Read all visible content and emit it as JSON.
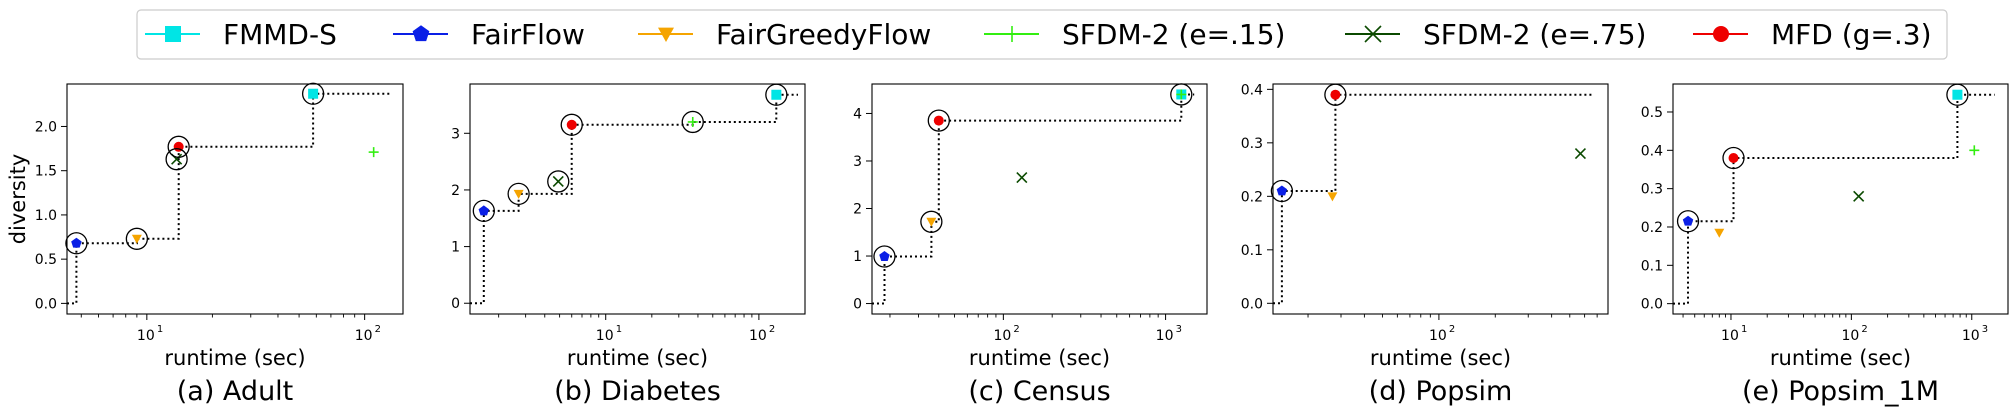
{
  "legend": {
    "entries": [
      {
        "label": "FMMD-S",
        "color": "#00e5e5",
        "marker": "square"
      },
      {
        "label": "FairFlow",
        "color": "#0a1fe6",
        "marker": "pentagon"
      },
      {
        "label": "FairGreedyFlow",
        "color": "#f5a400",
        "marker": "triangle-down"
      },
      {
        "label": "SFDM-2 (e=.15)",
        "color": "#33ee11",
        "marker": "plus"
      },
      {
        "label": "SFDM-2 (e=.75)",
        "color": "#0b4a00",
        "marker": "x"
      },
      {
        "label": "MFD (g=.3)",
        "color": "#ee0000",
        "marker": "circle"
      }
    ]
  },
  "chart_data": [
    {
      "type": "scatter",
      "caption": "(a) Adult",
      "xlabel": "runtime (sec)",
      "ylabel": "diversity",
      "xscale": "log",
      "xlim": [
        4.3,
        150
      ],
      "ylim": [
        -0.12,
        2.48
      ],
      "xticks": [
        {
          "v": 10,
          "base": "10",
          "exp": "1"
        },
        {
          "v": 100,
          "base": "10",
          "exp": "2"
        }
      ],
      "yticks": [
        {
          "v": 0,
          "label": "0.0"
        },
        {
          "v": 0.5,
          "label": "0.5"
        },
        {
          "v": 1.0,
          "label": "1.0"
        },
        {
          "v": 1.5,
          "label": "1.5"
        },
        {
          "v": 2.0,
          "label": "2.0"
        }
      ],
      "frontier": [
        [
          4.3,
          0
        ],
        [
          4.75,
          0
        ],
        [
          4.75,
          0.68
        ],
        [
          9,
          0.68
        ],
        [
          9,
          0.73
        ],
        [
          14,
          0.73
        ],
        [
          14,
          1.77
        ],
        [
          58,
          1.77
        ],
        [
          58,
          2.37
        ],
        [
          130,
          2.37
        ]
      ],
      "circled": [
        [
          4.75,
          0.68
        ],
        [
          9,
          0.73
        ],
        [
          13.7,
          1.63
        ],
        [
          14,
          1.77
        ],
        [
          58,
          2.37
        ]
      ],
      "points": [
        {
          "series": "FMMD-S",
          "x": 58,
          "y": 2.37
        },
        {
          "series": "FairFlow",
          "x": 4.75,
          "y": 0.68
        },
        {
          "series": "FairGreedyFlow",
          "x": 9,
          "y": 0.73
        },
        {
          "series": "SFDM-2 (e=.15)",
          "x": 110,
          "y": 1.71
        },
        {
          "series": "SFDM-2 (e=.75)",
          "x": 13.7,
          "y": 1.63
        },
        {
          "series": "MFD (g=.3)",
          "x": 14,
          "y": 1.77
        }
      ]
    },
    {
      "type": "scatter",
      "caption": "(b) Diabetes",
      "xlabel": "runtime (sec)",
      "ylabel": "",
      "xscale": "log",
      "xlim": [
        1.3,
        200
      ],
      "ylim": [
        -0.19,
        3.87
      ],
      "xticks": [
        {
          "v": 10,
          "base": "10",
          "exp": "1"
        },
        {
          "v": 100,
          "base": "10",
          "exp": "2"
        }
      ],
      "yticks": [
        {
          "v": 0,
          "label": "0"
        },
        {
          "v": 1,
          "label": "1"
        },
        {
          "v": 2,
          "label": "2"
        },
        {
          "v": 3,
          "label": "3"
        }
      ],
      "frontier": [
        [
          1.3,
          0
        ],
        [
          1.6,
          0
        ],
        [
          1.6,
          1.63
        ],
        [
          2.7,
          1.63
        ],
        [
          2.7,
          1.93
        ],
        [
          6,
          1.93
        ],
        [
          6,
          3.15
        ],
        [
          37,
          3.15
        ],
        [
          37,
          3.2
        ],
        [
          130,
          3.2
        ],
        [
          130,
          3.68
        ],
        [
          180,
          3.68
        ]
      ],
      "circled": [
        [
          1.6,
          1.63
        ],
        [
          2.7,
          1.93
        ],
        [
          4.9,
          2.15
        ],
        [
          6,
          3.15
        ],
        [
          37,
          3.2
        ],
        [
          130,
          3.68
        ]
      ],
      "points": [
        {
          "series": "FMMD-S",
          "x": 130,
          "y": 3.68
        },
        {
          "series": "FairFlow",
          "x": 1.6,
          "y": 1.63
        },
        {
          "series": "FairGreedyFlow",
          "x": 2.7,
          "y": 1.93
        },
        {
          "series": "SFDM-2 (e=.15)",
          "x": 37,
          "y": 3.2
        },
        {
          "series": "SFDM-2 (e=.75)",
          "x": 4.9,
          "y": 2.15
        },
        {
          "series": "MFD (g=.3)",
          "x": 6,
          "y": 3.15
        }
      ]
    },
    {
      "type": "scatter",
      "caption": "(c) Census",
      "xlabel": "runtime (sec)",
      "ylabel": "",
      "xscale": "log",
      "xlim": [
        15.5,
        1800
      ],
      "ylim": [
        -0.22,
        4.62
      ],
      "xticks": [
        {
          "v": 100,
          "base": "10",
          "exp": "2"
        },
        {
          "v": 1000,
          "base": "10",
          "exp": "3"
        }
      ],
      "yticks": [
        {
          "v": 0,
          "label": "0"
        },
        {
          "v": 1,
          "label": "1"
        },
        {
          "v": 2,
          "label": "2"
        },
        {
          "v": 3,
          "label": "3"
        },
        {
          "v": 4,
          "label": "4"
        }
      ],
      "frontier": [
        [
          15.5,
          0
        ],
        [
          18.5,
          0
        ],
        [
          18.5,
          0.99
        ],
        [
          36,
          0.99
        ],
        [
          36,
          1.72
        ],
        [
          40,
          1.72
        ],
        [
          40,
          3.85
        ],
        [
          1250,
          3.85
        ],
        [
          1250,
          4.4
        ],
        [
          1500,
          4.4
        ]
      ],
      "circled": [
        [
          18.5,
          0.99
        ],
        [
          36,
          1.72
        ],
        [
          40,
          3.85
        ],
        [
          1250,
          4.4
        ]
      ],
      "points": [
        {
          "series": "FMMD-S",
          "x": 1250,
          "y": 4.4
        },
        {
          "series": "FairFlow",
          "x": 18.5,
          "y": 0.99
        },
        {
          "series": "FairGreedyFlow",
          "x": 36,
          "y": 1.72
        },
        {
          "series": "SFDM-2 (e=.15)",
          "x": 1250,
          "y": 4.4
        },
        {
          "series": "SFDM-2 (e=.75)",
          "x": 130,
          "y": 2.65
        },
        {
          "series": "MFD (g=.3)",
          "x": 40,
          "y": 3.85
        }
      ]
    },
    {
      "type": "scatter",
      "caption": "(d) Popsim",
      "xlabel": "runtime (sec)",
      "ylabel": "",
      "xscale": "log",
      "xlim": [
        13,
        800
      ],
      "ylim": [
        -0.02,
        0.41
      ],
      "xticks": [
        {
          "v": 100,
          "base": "10",
          "exp": "2"
        }
      ],
      "yticks": [
        {
          "v": 0,
          "label": "0.0"
        },
        {
          "v": 0.1,
          "label": "0.1"
        },
        {
          "v": 0.2,
          "label": "0.2"
        },
        {
          "v": 0.3,
          "label": "0.3"
        },
        {
          "v": 0.4,
          "label": "0.4"
        }
      ],
      "frontier": [
        [
          13,
          0
        ],
        [
          14.5,
          0
        ],
        [
          14.5,
          0.21
        ],
        [
          28,
          0.21
        ],
        [
          28,
          0.39
        ],
        [
          660,
          0.39
        ]
      ],
      "circled": [
        [
          14.5,
          0.21
        ],
        [
          28,
          0.39
        ]
      ],
      "points": [
        {
          "series": "FairFlow",
          "x": 14.5,
          "y": 0.21
        },
        {
          "series": "FairGreedyFlow",
          "x": 27,
          "y": 0.2
        },
        {
          "series": "SFDM-2 (e=.75)",
          "x": 570,
          "y": 0.28
        },
        {
          "series": "MFD (g=.3)",
          "x": 28,
          "y": 0.39
        }
      ]
    },
    {
      "type": "scatter",
      "caption": "(e) Popsim_1M",
      "xlabel": "runtime (sec)",
      "ylabel": "",
      "xscale": "log",
      "xlim": [
        3.3,
        2000
      ],
      "ylim": [
        -0.027,
        0.573
      ],
      "xticks": [
        {
          "v": 10,
          "base": "10",
          "exp": "1"
        },
        {
          "v": 100,
          "base": "10",
          "exp": "2"
        },
        {
          "v": 1000,
          "base": "10",
          "exp": "3"
        }
      ],
      "yticks": [
        {
          "v": 0,
          "label": "0.0"
        },
        {
          "v": 0.1,
          "label": "0.1"
        },
        {
          "v": 0.2,
          "label": "0.2"
        },
        {
          "v": 0.3,
          "label": "0.3"
        },
        {
          "v": 0.4,
          "label": "0.4"
        },
        {
          "v": 0.5,
          "label": "0.5"
        }
      ],
      "frontier": [
        [
          3.3,
          0
        ],
        [
          4.4,
          0
        ],
        [
          4.4,
          0.215
        ],
        [
          10.5,
          0.215
        ],
        [
          10.5,
          0.38
        ],
        [
          760,
          0.38
        ],
        [
          760,
          0.545
        ],
        [
          1550,
          0.545
        ]
      ],
      "circled": [
        [
          4.4,
          0.215
        ],
        [
          10.5,
          0.38
        ],
        [
          760,
          0.545
        ]
      ],
      "points": [
        {
          "series": "FMMD-S",
          "x": 760,
          "y": 0.545
        },
        {
          "series": "FairFlow",
          "x": 4.4,
          "y": 0.215
        },
        {
          "series": "FairGreedyFlow",
          "x": 8,
          "y": 0.185
        },
        {
          "series": "SFDM-2 (e=.15)",
          "x": 1050,
          "y": 0.4
        },
        {
          "series": "SFDM-2 (e=.75)",
          "x": 115,
          "y": 0.28
        },
        {
          "series": "MFD (g=.3)",
          "x": 10.5,
          "y": 0.38
        }
      ]
    }
  ]
}
